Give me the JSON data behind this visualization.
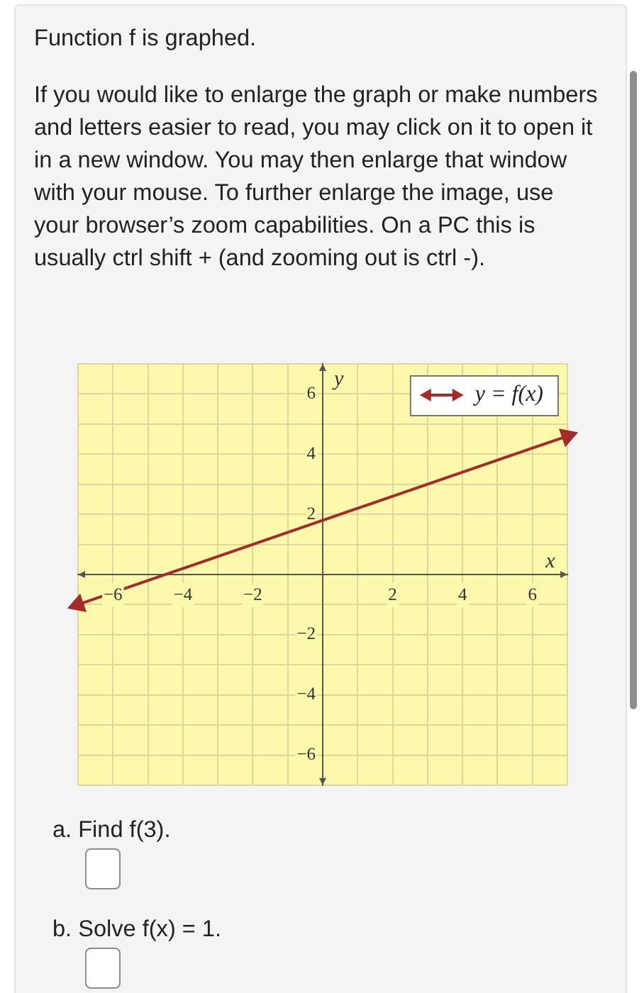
{
  "chart_data": {
    "type": "line",
    "title": "Function f is graphed.",
    "subtitle": "If you would like to enlarge the graph or make numbers and letters easier to read, you may click on it to open it in a new window. You may then enlarge that window with your mouse. To further enlarge the image, use your browser’s zoom capabilities. On a PC this is usually ctrl shift + (and zooming out is ctrl -).",
    "xlabel": "x",
    "ylabel": "y",
    "x": [
      -7,
      7
    ],
    "series": [
      {
        "name": "y = f(x)",
        "color": "#a52a2a",
        "values": [
          -1,
          4.6
        ]
      }
    ],
    "xlim": [
      -7,
      7
    ],
    "ylim": [
      -7,
      7
    ],
    "xticks": [
      {
        "value": -7,
        "label": null
      },
      {
        "value": -6,
        "label": "−6"
      },
      {
        "value": -5,
        "label": null
      },
      {
        "value": -4,
        "label": "−4"
      },
      {
        "value": -3,
        "label": null
      },
      {
        "value": -2,
        "label": "−2"
      },
      {
        "value": -1,
        "label": null
      },
      {
        "value": 0,
        "label": null
      },
      {
        "value": 1,
        "label": null
      },
      2,
      {
        "value": 3,
        "label": null
      },
      4,
      {
        "value": 5,
        "label": null
      },
      6,
      {
        "value": 7,
        "label": null
      }
    ],
    "yticks": [
      {
        "value": -7,
        "label": null
      },
      {
        "value": -6,
        "label": "−6"
      },
      {
        "value": -5,
        "label": null
      },
      {
        "value": -4,
        "label": "−4"
      },
      {
        "value": -3,
        "label": null
      },
      {
        "value": -2,
        "label": "−2"
      },
      {
        "value": -1,
        "label": null
      },
      {
        "value": 0,
        "label": null
      },
      {
        "value": 1,
        "label": null
      },
      2,
      {
        "value": 3,
        "label": null
      },
      4,
      {
        "value": 5,
        "label": null
      },
      6,
      {
        "value": 7,
        "label": null
      }
    ],
    "grid": true,
    "legend": "top right",
    "marker": "triangle",
    "line_style": "solid",
    "annotations": [
      "a. Find f(3).",
      "b. Solve f(x) = 1."
    ]
  }
}
